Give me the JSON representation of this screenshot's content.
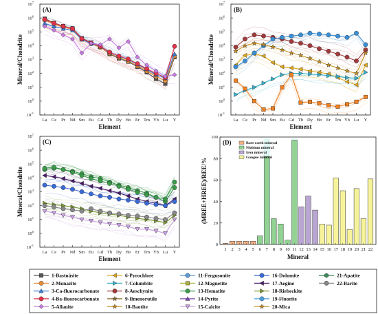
{
  "chart_data": [
    {
      "panel": "(A)",
      "type": "line",
      "log_y": true,
      "ylabel": "Mineral/Chondrite",
      "xlabel": "Element",
      "ylim_exp": [
        -1,
        7
      ],
      "ytick_exp": [
        -1,
        0,
        1,
        2,
        3,
        4,
        5,
        6,
        7
      ],
      "categories": [
        "La",
        "Ce",
        "Pr",
        "Nd",
        "Sm",
        "Eu",
        "Gd",
        "Tb",
        "Dy",
        "Ho",
        "Er",
        "Tm",
        "Yb",
        "Lu",
        "Y"
      ],
      "series": [
        {
          "name": "1-Bastnäsite",
          "color": "#555555",
          "marker": "square",
          "values": [
            900000,
            450000,
            260000,
            180000,
            35000,
            17000,
            8000,
            2500,
            1200,
            700,
            300,
            120,
            40,
            18,
            1500
          ]
        },
        {
          "name": "2-Monazite",
          "color": "#e98f3a",
          "marker": "circle",
          "values": [
            700000,
            380000,
            220000,
            150000,
            30000,
            14000,
            7500,
            2800,
            1400,
            800,
            350,
            150,
            60,
            30,
            1800
          ]
        },
        {
          "name": "3-Ca-fluorocarbonate",
          "color": "#3a7bd5",
          "marker": "triangle",
          "values": [
            400000,
            250000,
            170000,
            130000,
            28000,
            14000,
            8500,
            3200,
            1700,
            1000,
            450,
            200,
            80,
            45,
            2500
          ]
        },
        {
          "name": "4-Ba-fluorocarbonate",
          "color": "#e0334a",
          "marker": "circle",
          "values": [
            800000,
            420000,
            250000,
            170000,
            32000,
            16000,
            9000,
            3500,
            1800,
            1100,
            500,
            220,
            100,
            50,
            9000
          ]
        },
        {
          "name": "5-Allanite",
          "color": "#c77be0",
          "marker": "diamond",
          "values": [
            250000,
            130000,
            60000,
            30000,
            3000,
            15000,
            12000,
            30000,
            7000,
            20000,
            1500,
            400,
            150,
            60,
            80
          ]
        }
      ]
    },
    {
      "panel": "(B)",
      "type": "line",
      "log_y": true,
      "ylabel": "Mineral/Chondrite",
      "xlabel": "Element",
      "ylim_exp": [
        -1,
        7
      ],
      "ytick_exp": [
        -1,
        0,
        1,
        2,
        3,
        4,
        5,
        6,
        7
      ],
      "categories": [
        "La",
        "Ce",
        "Pr",
        "Nd",
        "Sm",
        "Eu",
        "Gd",
        "Tb",
        "Dy",
        "Ho",
        "Er",
        "Tm",
        "Yb",
        "Lu",
        "Y"
      ],
      "series": [
        {
          "name": "6-Pyrochlore",
          "color": "#e0a820",
          "marker": "triangle-left",
          "values": [
            400,
            2000,
            2500,
            1800,
            600,
            300,
            250,
            200,
            150,
            120,
            90,
            50,
            25,
            15,
            400
          ]
        },
        {
          "name": "7-Columbite",
          "color": "#38b0c8",
          "marker": "triangle-right",
          "values": [
            3,
            6,
            10,
            20,
            40,
            80,
            100,
            100,
            90,
            80,
            70,
            60,
            50,
            45,
            120
          ]
        },
        {
          "name": "8-Aeschynite",
          "color": "#a13b3b",
          "marker": "circle",
          "values": [
            8000,
            30000,
            60000,
            50000,
            40000,
            30000,
            20000,
            15000,
            10000,
            6000,
            4000,
            2500,
            1500,
            800,
            5000
          ]
        },
        {
          "name": "11-Fergusonite",
          "color": "#3b8fd5",
          "marker": "circle",
          "values": [
            300,
            800,
            3000,
            10000,
            30000,
            40000,
            50000,
            60000,
            80000,
            70000,
            60000,
            50000,
            40000,
            80000,
            12000
          ]
        },
        {
          "name": "19-Fluorite",
          "color": "#f08020",
          "marker": "square",
          "values": [
            30,
            8,
            1,
            0.25,
            0.3,
            10,
            80,
            0.8,
            0.9,
            0.7,
            0.5,
            0.4,
            0.6,
            0.9,
            2
          ]
        },
        {
          "name": "20-Mica",
          "color": "#c89020",
          "marker": "star",
          "values": [
            4000,
            10000,
            15000,
            12000,
            8000,
            5000,
            3000,
            2000,
            1200,
            700,
            400,
            250,
            150,
            100,
            3000
          ]
        }
      ]
    },
    {
      "panel": "(C)",
      "type": "line",
      "log_y": true,
      "ylabel": "Mineral/Chondrite",
      "xlabel": "Element",
      "ylim_exp": [
        -1,
        7
      ],
      "ytick_exp": [
        -1,
        0,
        1,
        2,
        3,
        4,
        5,
        6,
        7
      ],
      "categories": [
        "La",
        "Ce",
        "Pr",
        "Nd",
        "Sm",
        "Eu",
        "Gd",
        "Tb",
        "Dy",
        "Ho",
        "Er",
        "Tm",
        "Yb",
        "Lu",
        "Y"
      ],
      "series": [
        {
          "name": "13-Hematite",
          "color": "#3a9a4a",
          "marker": "circle",
          "values": [
            40000,
            50000,
            40000,
            30000,
            20000,
            12000,
            9000,
            5000,
            3000,
            2000,
            1200,
            800,
            400,
            200,
            2000
          ]
        },
        {
          "name": "17-Aegine",
          "color": "#4a1a6a",
          "marker": "triangle-left",
          "values": [
            15000,
            12000,
            9000,
            6000,
            4000,
            2500,
            1800,
            1200,
            800,
            500,
            300,
            200,
            150,
            100,
            300
          ]
        },
        {
          "name": "16-Dolomite",
          "color": "#3a6ad5",
          "marker": "circle",
          "values": [
            3000,
            2500,
            2000,
            1500,
            1000,
            700,
            500,
            400,
            300,
            250,
            200,
            150,
            120,
            100,
            200
          ]
        },
        {
          "name": "18-Riebeckite",
          "color": "#7a9a30",
          "marker": "triangle-right",
          "values": [
            150,
            120,
            100,
            80,
            60,
            40,
            30,
            25,
            20,
            15,
            12,
            10,
            8,
            6,
            20
          ]
        },
        {
          "name": "22-Barite",
          "color": "#888888",
          "marker": "circle",
          "values": [
            100,
            80,
            60,
            50,
            40,
            60,
            40,
            30,
            25,
            20,
            18,
            15,
            12,
            10,
            30
          ]
        },
        {
          "name": "21-Apatite",
          "color": "#3a9a4a",
          "marker": "circle",
          "values": [
            50000,
            60000,
            40000,
            25000,
            15000,
            9000,
            6000,
            4000,
            2500,
            1500,
            900,
            600,
            400,
            300,
            5000
          ]
        },
        {
          "name": "15-Calcite",
          "color": "#c8a0e0",
          "marker": "triangle-down",
          "values": [
            40,
            30,
            20,
            15,
            10,
            8,
            6,
            5,
            4,
            3,
            2,
            2,
            1.5,
            1,
            10
          ]
        }
      ]
    },
    {
      "panel": "(D)",
      "type": "bar",
      "xlabel": "Mineral",
      "ylabel": "(MREE+HREE)/REE/%",
      "ylim": [
        0,
        100
      ],
      "yticks": [
        0,
        20,
        40,
        60,
        80,
        100
      ],
      "categories": [
        "1",
        "2",
        "3",
        "4",
        "5",
        "6",
        "7",
        "8",
        "9",
        "10",
        "11",
        "12",
        "13",
        "14",
        "15",
        "16",
        "17",
        "18",
        "19",
        "20",
        "21",
        "22"
      ],
      "values": [
        1,
        3,
        3,
        3,
        3,
        8,
        82,
        24,
        19,
        4,
        97,
        35,
        45,
        32,
        19,
        18,
        62,
        50,
        14,
        52,
        24,
        61
      ],
      "groups": [
        1,
        1,
        1,
        1,
        1,
        2,
        2,
        2,
        2,
        2,
        2,
        3,
        3,
        3,
        4,
        4,
        4,
        4,
        4,
        4,
        4,
        4
      ],
      "legend": [
        {
          "label": "Rare earth mineral",
          "color": "#f4b183"
        },
        {
          "label": "Niobium mineral",
          "color": "#92d394"
        },
        {
          "label": "Iron mineral",
          "color": "#b9a6d3"
        },
        {
          "label": "Gangue mineral",
          "color": "#f6f39a"
        }
      ],
      "legend_position": "top-left"
    }
  ],
  "legend": [
    {
      "label": "1-Bastnäsite",
      "color": "#555555",
      "marker": "square"
    },
    {
      "label": "2-Monazite",
      "color": "#e98f3a",
      "marker": "circle"
    },
    {
      "label": "3-Ca-fluorocarbonate",
      "color": "#3a7bd5",
      "marker": "triangle"
    },
    {
      "label": "4-Ba-fluorocarbonate",
      "color": "#e0334a",
      "marker": "circle"
    },
    {
      "label": "5-Allanite",
      "color": "#c77be0",
      "marker": "diamond"
    },
    {
      "label": "6-Pyrochlore",
      "color": "#e0a820",
      "marker": "triangle-left"
    },
    {
      "label": "7-Columbite",
      "color": "#38b0c8",
      "marker": "triangle-right"
    },
    {
      "label": "8-Aeschynite",
      "color": "#a13b3b",
      "marker": "circle"
    },
    {
      "label": "9-Ilmenorutile",
      "color": "#8a6a2a",
      "marker": "star"
    },
    {
      "label": "10-Baotite",
      "color": "#c89020",
      "marker": "star"
    },
    {
      "label": "11-Fergusonite",
      "color": "#5a9ad5",
      "marker": "circle"
    },
    {
      "label": "12-Magnetite",
      "color": "#b0b040",
      "marker": "square"
    },
    {
      "label": "13-Hematite",
      "color": "#3a9a4a",
      "marker": "circle"
    },
    {
      "label": "14-Pyrite",
      "color": "#7a4aaa",
      "marker": "triangle"
    },
    {
      "label": "15-Calcite",
      "color": "#c8a0e0",
      "marker": "triangle-down"
    },
    {
      "label": "16-Dolomite",
      "color": "#3a6ad5",
      "marker": "circle"
    },
    {
      "label": "17-Aegine",
      "color": "#4a1a6a",
      "marker": "triangle-left"
    },
    {
      "label": "18-Riebeckite",
      "color": "#7a9a30",
      "marker": "triangle-right"
    },
    {
      "label": "19-Fluorite",
      "color": "#4aa0e0",
      "marker": "circle"
    },
    {
      "label": "20-Mica",
      "color": "#c89020",
      "marker": "star"
    },
    {
      "label": "21-Apatite",
      "color": "#3a8a5a",
      "marker": "hexagon"
    },
    {
      "label": "22-Barite",
      "color": "#888888",
      "marker": "circle"
    }
  ]
}
